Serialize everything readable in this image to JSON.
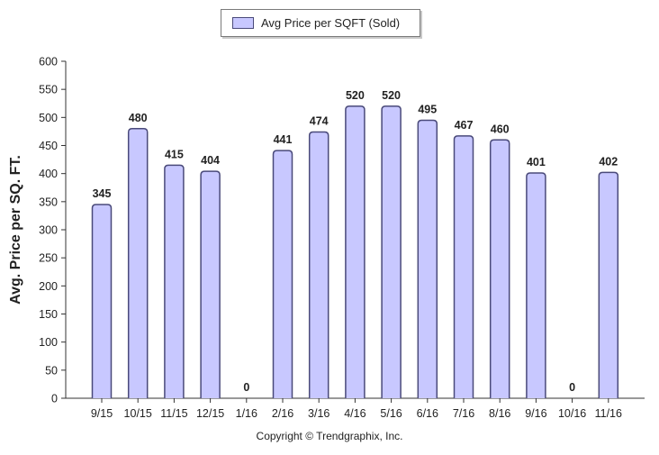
{
  "chart_data": {
    "type": "bar",
    "categories": [
      "9/15",
      "10/15",
      "11/15",
      "12/15",
      "1/16",
      "2/16",
      "3/16",
      "4/16",
      "5/16",
      "6/16",
      "7/16",
      "8/16",
      "9/16",
      "10/16",
      "11/16"
    ],
    "series": [
      {
        "name": "Avg Price per SQFT (Sold)",
        "values": [
          345,
          480,
          415,
          404,
          0,
          441,
          474,
          520,
          520,
          495,
          467,
          460,
          401,
          0,
          402
        ]
      }
    ],
    "ylabel": "Avg. Price per SQ. FT.",
    "xlabel": "",
    "ylim": [
      0,
      600
    ],
    "yticks": [
      0,
      50,
      100,
      150,
      200,
      250,
      300,
      350,
      400,
      450,
      500,
      550,
      600
    ],
    "grid": false,
    "legend_position": "top-center",
    "bar_color": "#c8c8ff",
    "bar_edge_color": "#4a4a7a",
    "label_color": "#222222"
  },
  "footer": {
    "copyright": "Copyright © Trendgraphix, Inc."
  }
}
